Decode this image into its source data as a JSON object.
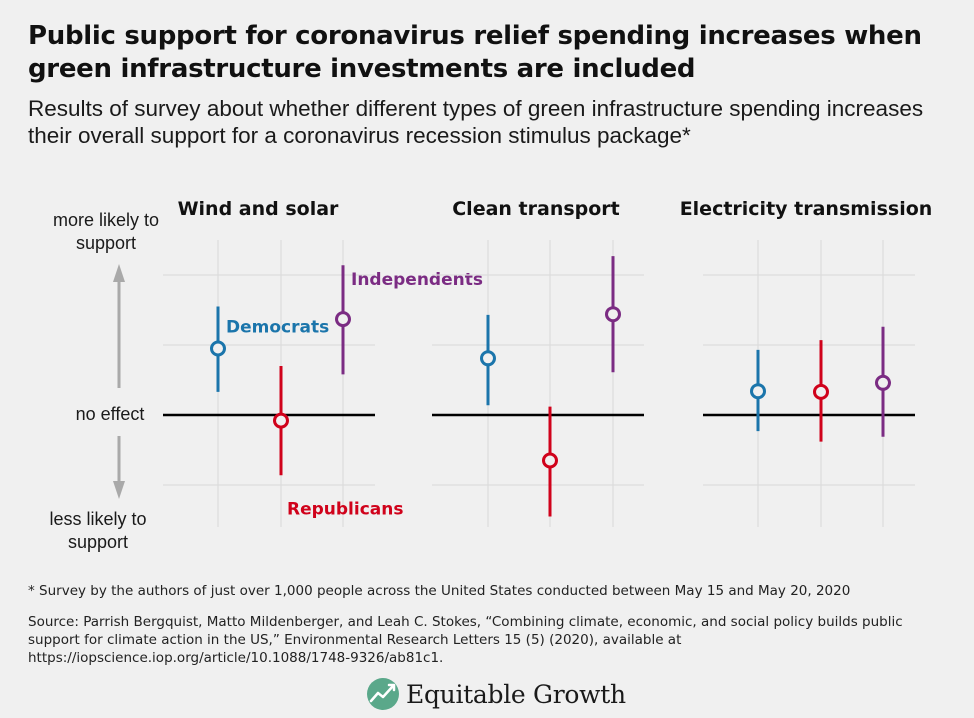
{
  "title": "Public support for coronavirus relief spending increases when green infrastructure investments are included",
  "subtitle": "Results of survey about whether different types of green infrastructure spending increases their overall support for a coronavirus recession stimulus package*",
  "y_labels": {
    "top": "more likely to support",
    "middle": "no effect",
    "bottom": "less likely to support"
  },
  "footnote": "* Survey by the authors of just over 1,000 people across the United States conducted between May 15 and May 20, 2020",
  "source": "Source: Parrish Bergquist, Matto Mildenberger, and Leah C. Stokes, “Combining climate, economic, and social policy builds public support for climate action in the US,” Environmental Research Letters 15 (5) (2020), available at https://iopscience.iop.org/article/10.1088/1748-9326/ab81c1.",
  "logo_text": "Equitable Growth",
  "colors": {
    "Democrats": "#1b75ab",
    "Republicans": "#d0021b",
    "Independents": "#7b2c83"
  },
  "chart_data": [
    {
      "type": "scatter",
      "title": "Wind and solar",
      "ylim": [
        -1.65,
        2.4
      ],
      "series": [
        {
          "name": "Democrats",
          "estimate": 0.95,
          "ci": [
            0.33,
            1.55
          ],
          "label_shown": true
        },
        {
          "name": "Republicans",
          "estimate": -0.08,
          "ci": [
            -0.86,
            0.7
          ],
          "label_shown": true
        },
        {
          "name": "Independents",
          "estimate": 1.37,
          "ci": [
            0.58,
            2.14
          ],
          "label_shown": true
        }
      ]
    },
    {
      "type": "scatter",
      "title": "Clean transport",
      "ylim": [
        -1.65,
        2.4
      ],
      "series": [
        {
          "name": "Democrats",
          "estimate": 0.81,
          "ci": [
            0.14,
            1.43
          ]
        },
        {
          "name": "Republicans",
          "estimate": -0.65,
          "ci": [
            -1.45,
            0.12
          ]
        },
        {
          "name": "Independents",
          "estimate": 1.44,
          "ci": [
            0.61,
            2.27
          ]
        }
      ]
    },
    {
      "type": "scatter",
      "title": "Electricity transmission",
      "ylim": [
        -1.65,
        2.4
      ],
      "series": [
        {
          "name": "Democrats",
          "estimate": 0.34,
          "ci": [
            -0.23,
            0.93
          ]
        },
        {
          "name": "Republicans",
          "estimate": 0.33,
          "ci": [
            -0.38,
            1.07
          ]
        },
        {
          "name": "Independents",
          "estimate": 0.46,
          "ci": [
            -0.31,
            1.26
          ]
        }
      ]
    }
  ]
}
